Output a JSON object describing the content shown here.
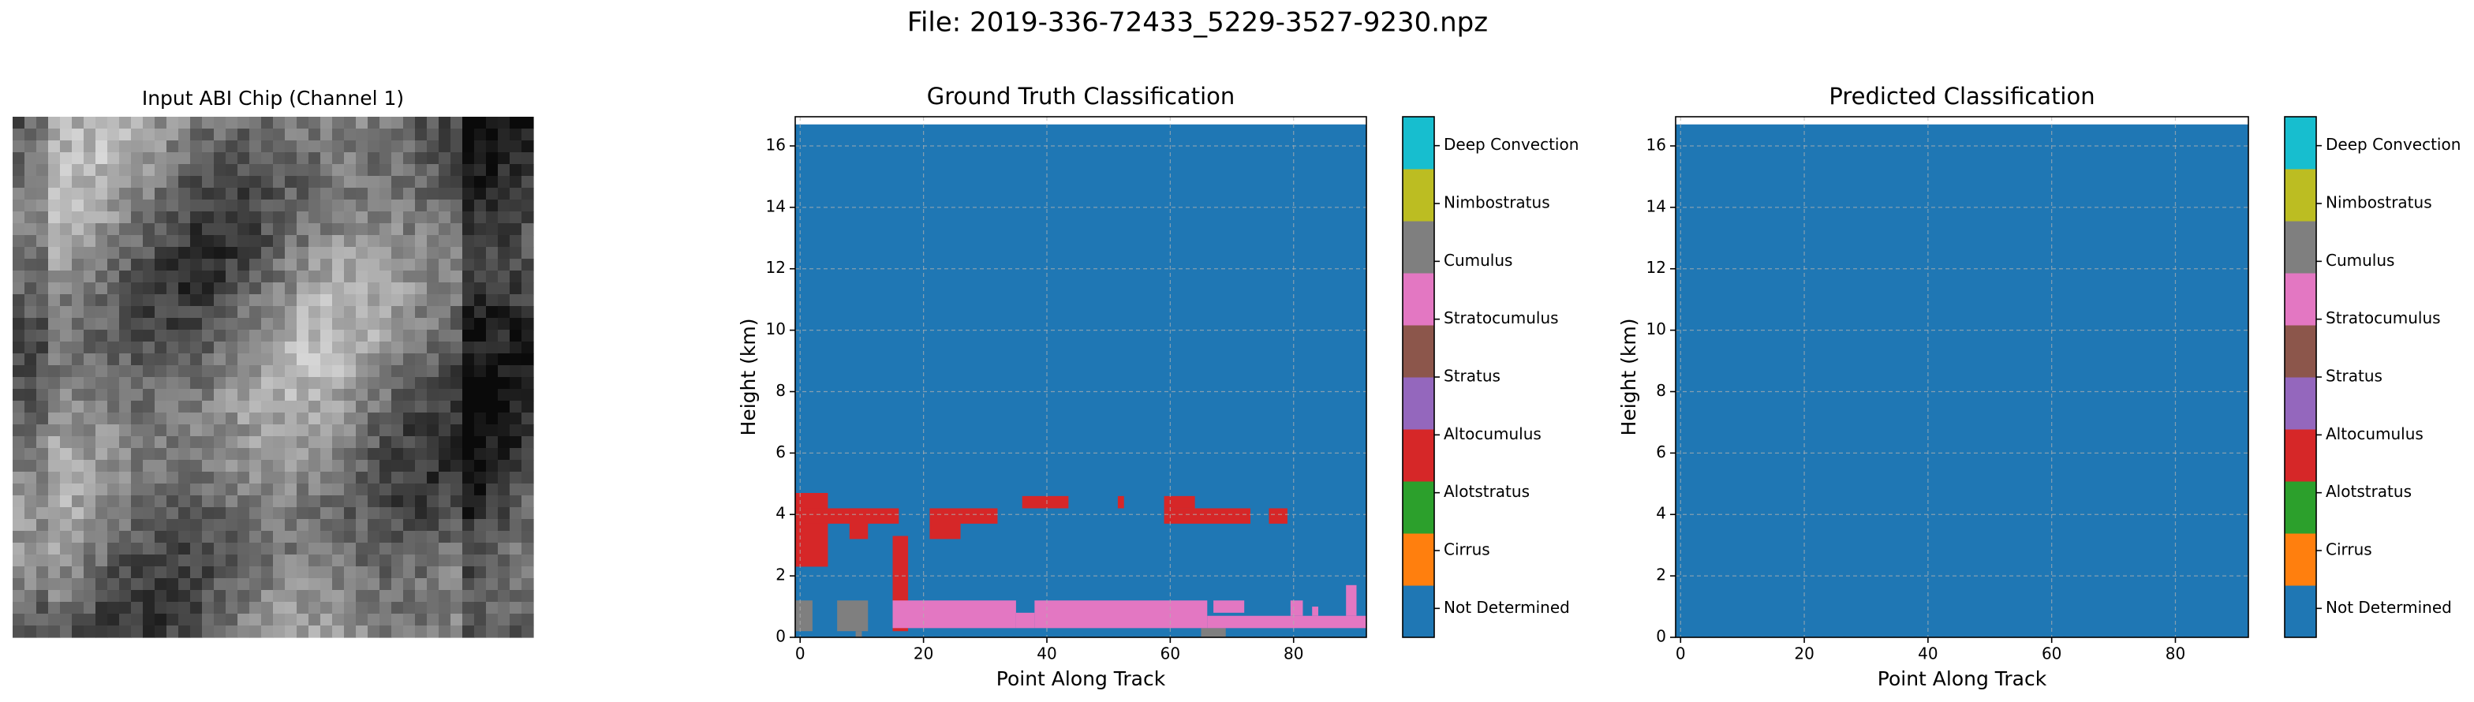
{
  "title": "File: 2019-336-72433_5229-3527-9230.npz",
  "chart_data": [
    {
      "type": "image",
      "title": "Input ABI Chip (Channel 1)"
    },
    {
      "type": "heatmap",
      "title": "Ground Truth Classification",
      "xlabel": "Point Along Track",
      "ylabel": "Height (km)",
      "xlim": [
        -0.8,
        91.8
      ],
      "ylim": [
        0,
        16.95
      ],
      "xticks": [
        0,
        20,
        40,
        60,
        80
      ],
      "yticks": [
        0,
        2,
        4,
        6,
        8,
        10,
        12,
        14,
        16
      ],
      "grid": true,
      "regions": [
        {
          "value": 0,
          "x": [
            -0.8,
            91.8
          ],
          "y": [
            0,
            16.7
          ]
        },
        {
          "value": 3,
          "x": [
            -0.8,
            4.5
          ],
          "y": [
            2.3,
            4.7
          ]
        },
        {
          "value": 3,
          "x": [
            -0.8,
            16
          ],
          "y": [
            3.7,
            4.2
          ]
        },
        {
          "value": 3,
          "x": [
            8,
            11
          ],
          "y": [
            3.2,
            4.2
          ]
        },
        {
          "value": 3,
          "x": [
            15,
            17.5
          ],
          "y": [
            0.2,
            3.3
          ]
        },
        {
          "value": 3,
          "x": [
            21,
            26
          ],
          "y": [
            3.2,
            4.2
          ]
        },
        {
          "value": 3,
          "x": [
            26,
            32
          ],
          "y": [
            3.7,
            4.2
          ]
        },
        {
          "value": 3,
          "x": [
            36,
            43.5
          ],
          "y": [
            4.2,
            4.6
          ]
        },
        {
          "value": 3,
          "x": [
            51.5,
            52.5
          ],
          "y": [
            4.2,
            4.6
          ]
        },
        {
          "value": 3,
          "x": [
            59,
            73
          ],
          "y": [
            3.7,
            4.2
          ]
        },
        {
          "value": 3,
          "x": [
            59,
            64
          ],
          "y": [
            4.2,
            4.6
          ]
        },
        {
          "value": 3,
          "x": [
            76,
            79
          ],
          "y": [
            3.7,
            4.2
          ]
        },
        {
          "value": 6,
          "x": [
            -0.8,
            2
          ],
          "y": [
            0.2,
            1.2
          ]
        },
        {
          "value": 6,
          "x": [
            6,
            11
          ],
          "y": [
            0.2,
            1.2
          ]
        },
        {
          "value": 6,
          "x": [
            9,
            10
          ],
          "y": [
            0,
            0.2
          ]
        },
        {
          "value": 6,
          "x": [
            65,
            69
          ],
          "y": [
            0,
            0.3
          ]
        },
        {
          "value": 5,
          "x": [
            15,
            35
          ],
          "y": [
            0.3,
            1.2
          ]
        },
        {
          "value": 5,
          "x": [
            35,
            38
          ],
          "y": [
            0.3,
            0.8
          ]
        },
        {
          "value": 5,
          "x": [
            38,
            66
          ],
          "y": [
            0.3,
            1.2
          ]
        },
        {
          "value": 5,
          "x": [
            66,
            91.8
          ],
          "y": [
            0.3,
            0.7
          ]
        },
        {
          "value": 5,
          "x": [
            67,
            72
          ],
          "y": [
            0.8,
            1.2
          ]
        },
        {
          "value": 5,
          "x": [
            79.5,
            81.5
          ],
          "y": [
            0.7,
            1.2
          ]
        },
        {
          "value": 5,
          "x": [
            83,
            84
          ],
          "y": [
            0.7,
            1.0
          ]
        },
        {
          "value": 5,
          "x": [
            88.5,
            90.2
          ],
          "y": [
            0.7,
            1.7
          ]
        }
      ],
      "colorbar": {
        "lim": [
          -0.5,
          8.5
        ],
        "colors": [
          "#1f77b4",
          "#ff7f0e",
          "#2ca02c",
          "#d62728",
          "#9467bd",
          "#8c564b",
          "#e377c2",
          "#7f7f7f",
          "#bcbd22",
          "#17becf"
        ],
        "ticks": [
          {
            "value": 0,
            "label": "Not Determined"
          },
          {
            "value": 1,
            "label": "Cirrus"
          },
          {
            "value": 2,
            "label": "Alotstratus"
          },
          {
            "value": 3,
            "label": "Altocumulus"
          },
          {
            "value": 4,
            "label": "Stratus"
          },
          {
            "value": 5,
            "label": "Stratocumulus"
          },
          {
            "value": 6,
            "label": "Cumulus"
          },
          {
            "value": 7,
            "label": "Nimbostratus"
          },
          {
            "value": 8,
            "label": "Deep Convection"
          }
        ]
      }
    },
    {
      "type": "heatmap",
      "title": "Predicted Classification",
      "xlabel": "Point Along Track",
      "ylabel": "Height (km)",
      "xlim": [
        -0.8,
        91.8
      ],
      "ylim": [
        0,
        16.95
      ],
      "xticks": [
        0,
        20,
        40,
        60,
        80
      ],
      "yticks": [
        0,
        2,
        4,
        6,
        8,
        10,
        12,
        14,
        16
      ],
      "grid": true,
      "regions": [
        {
          "value": 0,
          "x": [
            -0.8,
            91.8
          ],
          "y": [
            0,
            16.7
          ]
        }
      ],
      "colorbar": {
        "lim": [
          -0.5,
          8.5
        ],
        "colors": [
          "#1f77b4",
          "#ff7f0e",
          "#2ca02c",
          "#d62728",
          "#9467bd",
          "#8c564b",
          "#e377c2",
          "#7f7f7f",
          "#bcbd22",
          "#17becf"
        ],
        "ticks": [
          {
            "value": 0,
            "label": "Not Determined"
          },
          {
            "value": 1,
            "label": "Cirrus"
          },
          {
            "value": 2,
            "label": "Alotstratus"
          },
          {
            "value": 3,
            "label": "Altocumulus"
          },
          {
            "value": 4,
            "label": "Stratus"
          },
          {
            "value": 5,
            "label": "Stratocumulus"
          },
          {
            "value": 6,
            "label": "Cumulus"
          },
          {
            "value": 7,
            "label": "Nimbostratus"
          },
          {
            "value": 8,
            "label": "Deep Convection"
          }
        ]
      }
    }
  ]
}
